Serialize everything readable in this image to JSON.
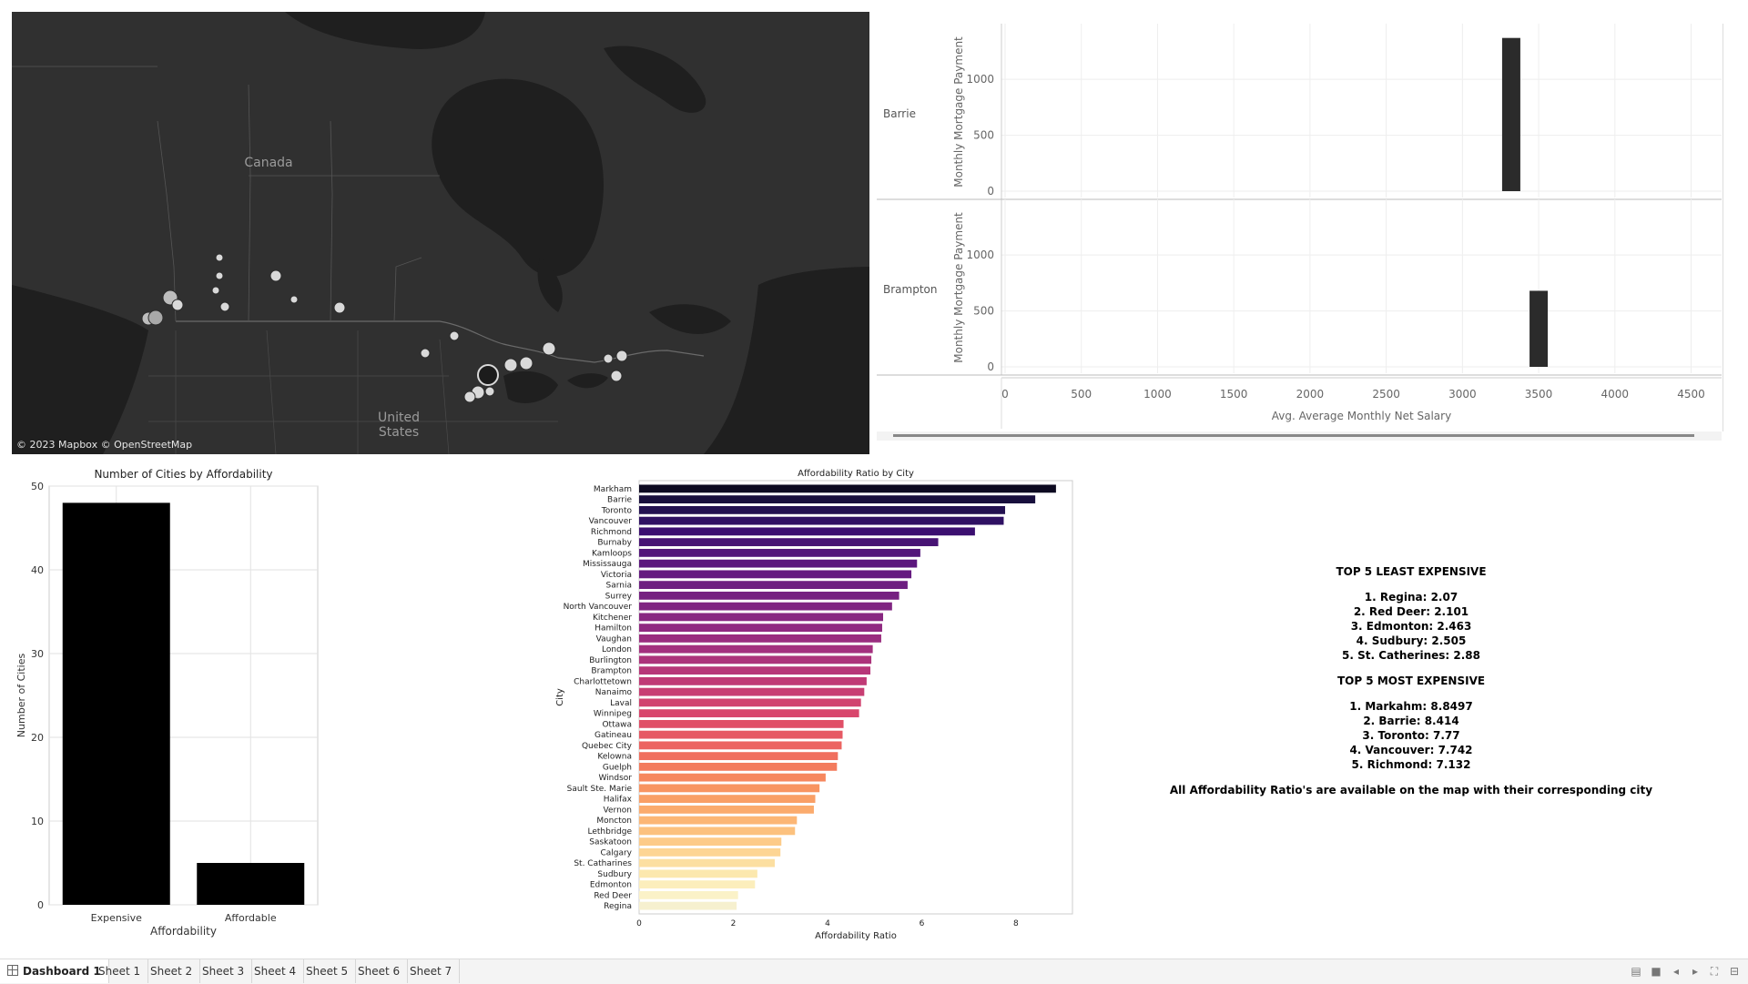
{
  "map": {
    "labels": {
      "country1": "Canada",
      "country2_line1": "United",
      "country2_line2": "States"
    },
    "credit": "© 2023 Mapbox © OpenStreetMap"
  },
  "salary_panel": {
    "rows": [
      {
        "city": "Barrie",
        "mortgage": 1370,
        "salary": 3320
      },
      {
        "city": "Brampton",
        "mortgage": 680,
        "salary": 3500
      }
    ],
    "y_label": "Monthly Mortgage Payment",
    "y_ticks": [
      "0",
      "500",
      "1000"
    ],
    "x_label": "Avg. Average Monthly Net Salary",
    "x_ticks": [
      "0",
      "500",
      "1000",
      "1500",
      "2000",
      "2500",
      "3000",
      "3500",
      "4000",
      "4500"
    ]
  },
  "chart_data": [
    {
      "type": "bar",
      "title": "Number of Cities by Affordability",
      "categories": [
        "Expensive",
        "Affordable"
      ],
      "values": [
        48,
        5
      ],
      "xlabel": "Affordability",
      "ylabel": "Number of Cities",
      "ylim": [
        0,
        50
      ],
      "y_ticks": [
        "0",
        "10",
        "20",
        "30",
        "40",
        "50"
      ],
      "grid": true
    },
    {
      "type": "bar",
      "orientation": "horizontal",
      "title": "Affordability Ratio by City",
      "xlabel": "Affordability Ratio",
      "ylabel": "City",
      "xlim": [
        0,
        9.2
      ],
      "x_ticks": [
        "0",
        "2",
        "4",
        "6",
        "8"
      ],
      "categories": [
        "Markham",
        "Barrie",
        "Toronto",
        "Vancouver",
        "Richmond",
        "Burnaby",
        "Kamloops",
        "Mississauga",
        "Victoria",
        "Sarnia",
        "Surrey",
        "North Vancouver",
        "Kitchener",
        "Hamilton",
        "Vaughan",
        "London",
        "Burlington",
        "Brampton",
        "Charlottetown",
        "Nanaimo",
        "Laval",
        "Winnipeg",
        "Ottawa",
        "Gatineau",
        "Quebec City",
        "Kelowna",
        "Guelph",
        "Windsor",
        "Sault Ste. Marie",
        "Halifax",
        "Vernon",
        "Moncton",
        "Lethbridge",
        "Saskatoon",
        "Calgary",
        "St. Catharines",
        "Sudbury",
        "Edmonton",
        "Red Deer",
        "Regina"
      ],
      "values": [
        8.85,
        8.41,
        7.77,
        7.74,
        7.13,
        6.35,
        5.97,
        5.9,
        5.78,
        5.7,
        5.52,
        5.37,
        5.18,
        5.16,
        5.14,
        4.96,
        4.93,
        4.91,
        4.83,
        4.78,
        4.71,
        4.67,
        4.34,
        4.32,
        4.3,
        4.22,
        4.2,
        3.96,
        3.83,
        3.74,
        3.71,
        3.35,
        3.31,
        3.02,
        3.0,
        2.88,
        2.51,
        2.46,
        2.1,
        2.07
      ]
    }
  ],
  "summary": {
    "least_title": "TOP 5 LEAST EXPENSIVE",
    "least": [
      "1. Regina: 2.07",
      "2. Red Deer: 2.101",
      "3. Edmonton: 2.463",
      "4. Sudbury: 2.505",
      "5. St. Catherines: 2.88"
    ],
    "most_title": "TOP 5 MOST EXPENSIVE",
    "most": [
      "1. Markahm: 8.8497",
      "2. Barrie: 8.414",
      "3. Toronto: 7.77",
      "4. Vancouver: 7.742",
      "5. Richmond: 7.132"
    ],
    "footer": "All Affordability Ratio's are available on the map with their corresponding city"
  },
  "tabs": [
    {
      "label": "Dashboard 1",
      "active": true
    },
    {
      "label": "Sheet 1",
      "active": false
    },
    {
      "label": "Sheet 2",
      "active": false
    },
    {
      "label": "Sheet 3",
      "active": false
    },
    {
      "label": "Sheet 4",
      "active": false
    },
    {
      "label": "Sheet 5",
      "active": false
    },
    {
      "label": "Sheet 6",
      "active": false
    },
    {
      "label": "Sheet 7",
      "active": false
    }
  ]
}
